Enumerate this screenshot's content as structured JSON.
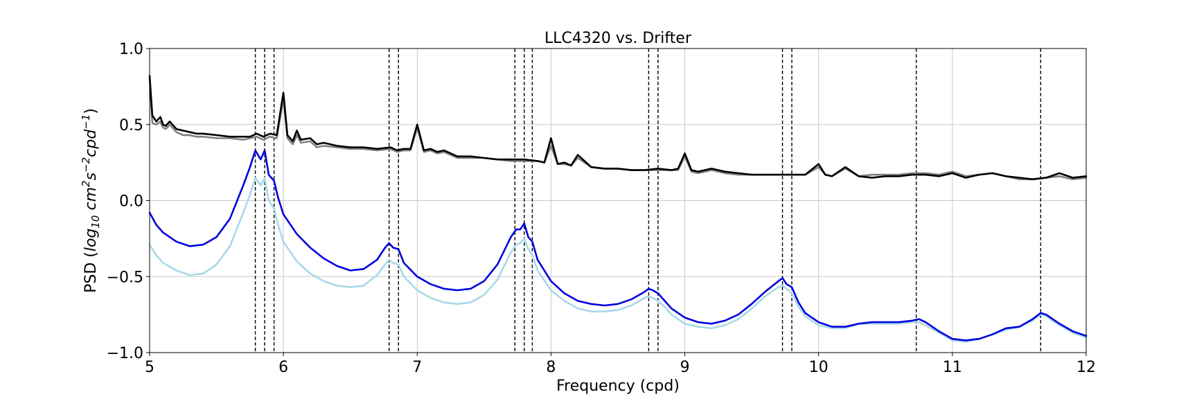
{
  "chart_data": {
    "type": "line",
    "title": "LLC4320 vs. Drifter",
    "xlabel": "Frequency (cpd)",
    "ylabel_parts": {
      "prefix": "PSD (",
      "log": "log",
      "log_sub": "10",
      "cm": " cm",
      "cm_sup": "2",
      "s": "s",
      "s_sup": "−2",
      "cpd": "cpd",
      "cpd_sup": "−1",
      "suffix": ")"
    },
    "xlim": [
      5,
      12
    ],
    "ylim": [
      -1.0,
      1.0
    ],
    "xticks": [
      5,
      6,
      7,
      8,
      9,
      10,
      11,
      12
    ],
    "xtick_labels": [
      "5",
      "6",
      "7",
      "8",
      "9",
      "10",
      "11",
      "12"
    ],
    "yticks": [
      1.0,
      0.5,
      0.0,
      -0.5,
      -1.0
    ],
    "ytick_labels": [
      "1.0",
      "0.5",
      "0.0",
      "−0.5",
      "−1.0"
    ],
    "grid": true,
    "legend": "none",
    "vlines": [
      5.79,
      5.86,
      5.93,
      6.79,
      6.86,
      7.73,
      7.8,
      7.86,
      8.73,
      8.8,
      9.73,
      9.8,
      10.73,
      11.66
    ],
    "vline_style": "dashed",
    "colors": {
      "black": "#000000",
      "gray": "#808080",
      "blue": "#0000e0",
      "lightblue": "#a8d8e8",
      "grid": "#c8c8c8"
    },
    "series": [
      {
        "color": "#000000",
        "x": [
          5.0,
          5.02,
          5.05,
          5.08,
          5.1,
          5.12,
          5.15,
          5.2,
          5.25,
          5.3,
          5.35,
          5.4,
          5.5,
          5.6,
          5.7,
          5.75,
          5.8,
          5.85,
          5.9,
          5.95,
          6.0,
          6.03,
          6.07,
          6.1,
          6.13,
          6.2,
          6.25,
          6.3,
          6.4,
          6.5,
          6.6,
          6.7,
          6.8,
          6.85,
          6.9,
          6.95,
          7.0,
          7.05,
          7.1,
          7.15,
          7.2,
          7.3,
          7.4,
          7.5,
          7.6,
          7.7,
          7.8,
          7.9,
          7.95,
          8.0,
          8.05,
          8.1,
          8.15,
          8.2,
          8.3,
          8.4,
          8.5,
          8.6,
          8.7,
          8.8,
          8.9,
          8.95,
          9.0,
          9.05,
          9.1,
          9.2,
          9.3,
          9.4,
          9.5,
          9.6,
          9.7,
          9.8,
          9.9,
          10.0,
          10.05,
          10.1,
          10.2,
          10.3,
          10.4,
          10.5,
          10.6,
          10.7,
          10.8,
          10.9,
          11.0,
          11.1,
          11.2,
          11.3,
          11.4,
          11.5,
          11.6,
          11.7,
          11.8,
          11.9,
          12.0
        ],
        "values": [
          0.82,
          0.56,
          0.52,
          0.55,
          0.5,
          0.49,
          0.52,
          0.47,
          0.46,
          0.45,
          0.44,
          0.44,
          0.43,
          0.42,
          0.42,
          0.42,
          0.44,
          0.42,
          0.44,
          0.43,
          0.71,
          0.43,
          0.39,
          0.46,
          0.4,
          0.41,
          0.37,
          0.38,
          0.36,
          0.35,
          0.35,
          0.34,
          0.35,
          0.33,
          0.34,
          0.34,
          0.5,
          0.33,
          0.34,
          0.32,
          0.33,
          0.29,
          0.29,
          0.28,
          0.27,
          0.27,
          0.27,
          0.26,
          0.25,
          0.41,
          0.24,
          0.25,
          0.23,
          0.3,
          0.22,
          0.21,
          0.21,
          0.2,
          0.2,
          0.21,
          0.2,
          0.21,
          0.31,
          0.2,
          0.19,
          0.21,
          0.19,
          0.18,
          0.17,
          0.17,
          0.17,
          0.17,
          0.17,
          0.24,
          0.17,
          0.16,
          0.22,
          0.16,
          0.15,
          0.16,
          0.16,
          0.17,
          0.17,
          0.16,
          0.18,
          0.15,
          0.17,
          0.18,
          0.16,
          0.15,
          0.14,
          0.15,
          0.18,
          0.15,
          0.16
        ]
      },
      {
        "color": "#808080",
        "x": [
          5.0,
          5.02,
          5.05,
          5.08,
          5.1,
          5.12,
          5.15,
          5.2,
          5.25,
          5.3,
          5.35,
          5.4,
          5.5,
          5.6,
          5.7,
          5.75,
          5.8,
          5.85,
          5.9,
          5.95,
          6.0,
          6.03,
          6.07,
          6.1,
          6.13,
          6.2,
          6.25,
          6.3,
          6.4,
          6.5,
          6.6,
          6.7,
          6.8,
          6.85,
          6.9,
          6.95,
          7.0,
          7.05,
          7.1,
          7.15,
          7.2,
          7.3,
          7.4,
          7.5,
          7.6,
          7.7,
          7.8,
          7.9,
          7.95,
          8.0,
          8.05,
          8.1,
          8.15,
          8.2,
          8.3,
          8.4,
          8.5,
          8.6,
          8.7,
          8.8,
          8.9,
          8.95,
          9.0,
          9.05,
          9.1,
          9.2,
          9.3,
          9.4,
          9.5,
          9.6,
          9.7,
          9.8,
          9.9,
          10.0,
          10.05,
          10.1,
          10.2,
          10.3,
          10.4,
          10.5,
          10.6,
          10.7,
          10.8,
          10.9,
          11.0,
          11.1,
          11.2,
          11.3,
          11.4,
          11.5,
          11.6,
          11.7,
          11.8,
          11.9,
          12.0
        ],
        "values": [
          0.8,
          0.51,
          0.5,
          0.52,
          0.48,
          0.47,
          0.5,
          0.45,
          0.43,
          0.43,
          0.42,
          0.42,
          0.41,
          0.41,
          0.4,
          0.41,
          0.42,
          0.4,
          0.42,
          0.41,
          0.67,
          0.41,
          0.37,
          0.43,
          0.38,
          0.39,
          0.35,
          0.36,
          0.35,
          0.34,
          0.34,
          0.33,
          0.34,
          0.32,
          0.33,
          0.33,
          0.48,
          0.32,
          0.33,
          0.31,
          0.32,
          0.28,
          0.28,
          0.28,
          0.27,
          0.26,
          0.26,
          0.26,
          0.25,
          0.36,
          0.24,
          0.24,
          0.23,
          0.28,
          0.22,
          0.21,
          0.21,
          0.2,
          0.2,
          0.2,
          0.2,
          0.2,
          0.29,
          0.19,
          0.18,
          0.2,
          0.18,
          0.17,
          0.17,
          0.17,
          0.17,
          0.17,
          0.17,
          0.22,
          0.17,
          0.16,
          0.21,
          0.16,
          0.17,
          0.17,
          0.17,
          0.18,
          0.18,
          0.17,
          0.19,
          0.16,
          0.17,
          0.18,
          0.16,
          0.14,
          0.14,
          0.15,
          0.16,
          0.14,
          0.15
        ]
      },
      {
        "color": "#0000e0",
        "x": [
          5.0,
          5.05,
          5.1,
          5.2,
          5.3,
          5.4,
          5.5,
          5.6,
          5.7,
          5.75,
          5.79,
          5.83,
          5.86,
          5.89,
          5.93,
          5.96,
          6.0,
          6.1,
          6.2,
          6.3,
          6.4,
          6.5,
          6.6,
          6.7,
          6.76,
          6.79,
          6.82,
          6.86,
          6.9,
          7.0,
          7.1,
          7.2,
          7.3,
          7.4,
          7.5,
          7.6,
          7.7,
          7.74,
          7.77,
          7.8,
          7.83,
          7.86,
          7.9,
          8.0,
          8.1,
          8.2,
          8.3,
          8.4,
          8.5,
          8.6,
          8.7,
          8.73,
          8.76,
          8.8,
          8.85,
          8.9,
          9.0,
          9.1,
          9.2,
          9.3,
          9.4,
          9.5,
          9.6,
          9.7,
          9.73,
          9.76,
          9.8,
          9.85,
          9.9,
          10.0,
          10.1,
          10.2,
          10.3,
          10.4,
          10.5,
          10.6,
          10.7,
          10.75,
          10.8,
          10.9,
          11.0,
          11.1,
          11.2,
          11.3,
          11.4,
          11.5,
          11.6,
          11.66,
          11.7,
          11.8,
          11.9,
          12.0
        ],
        "values": [
          -0.08,
          -0.16,
          -0.21,
          -0.27,
          -0.3,
          -0.29,
          -0.24,
          -0.12,
          0.1,
          0.22,
          0.33,
          0.27,
          0.33,
          0.17,
          0.13,
          0.02,
          -0.09,
          -0.22,
          -0.31,
          -0.38,
          -0.43,
          -0.46,
          -0.45,
          -0.39,
          -0.31,
          -0.28,
          -0.31,
          -0.32,
          -0.41,
          -0.5,
          -0.55,
          -0.58,
          -0.59,
          -0.58,
          -0.53,
          -0.42,
          -0.24,
          -0.19,
          -0.19,
          -0.15,
          -0.24,
          -0.27,
          -0.39,
          -0.53,
          -0.61,
          -0.66,
          -0.68,
          -0.69,
          -0.68,
          -0.65,
          -0.6,
          -0.58,
          -0.59,
          -0.61,
          -0.66,
          -0.71,
          -0.77,
          -0.8,
          -0.81,
          -0.79,
          -0.75,
          -0.68,
          -0.6,
          -0.53,
          -0.51,
          -0.55,
          -0.57,
          -0.67,
          -0.74,
          -0.8,
          -0.83,
          -0.83,
          -0.81,
          -0.8,
          -0.8,
          -0.8,
          -0.79,
          -0.78,
          -0.8,
          -0.86,
          -0.91,
          -0.92,
          -0.91,
          -0.88,
          -0.84,
          -0.83,
          -0.78,
          -0.74,
          -0.75,
          -0.81,
          -0.86,
          -0.89
        ]
      },
      {
        "color": "#a8d8e8",
        "x": [
          5.0,
          5.05,
          5.1,
          5.2,
          5.3,
          5.4,
          5.5,
          5.6,
          5.7,
          5.75,
          5.79,
          5.83,
          5.86,
          5.89,
          5.93,
          5.96,
          6.0,
          6.1,
          6.2,
          6.3,
          6.4,
          6.5,
          6.6,
          6.7,
          6.76,
          6.79,
          6.82,
          6.86,
          6.9,
          7.0,
          7.1,
          7.2,
          7.3,
          7.4,
          7.5,
          7.6,
          7.7,
          7.74,
          7.77,
          7.8,
          7.83,
          7.86,
          7.9,
          8.0,
          8.1,
          8.2,
          8.3,
          8.4,
          8.5,
          8.6,
          8.7,
          8.73,
          8.76,
          8.8,
          8.85,
          8.9,
          9.0,
          9.1,
          9.2,
          9.3,
          9.4,
          9.5,
          9.6,
          9.7,
          9.73,
          9.76,
          9.8,
          9.85,
          9.9,
          10.0,
          10.1,
          10.2,
          10.3,
          10.4,
          10.5,
          10.6,
          10.7,
          10.75,
          10.8,
          10.9,
          11.0,
          11.1,
          11.2,
          11.3,
          11.4,
          11.5,
          11.6,
          11.66,
          11.7,
          11.8,
          11.9,
          12.0
        ],
        "values": [
          -0.29,
          -0.36,
          -0.41,
          -0.46,
          -0.49,
          -0.48,
          -0.42,
          -0.3,
          -0.08,
          0.04,
          0.15,
          0.1,
          0.15,
          0.0,
          -0.05,
          -0.16,
          -0.27,
          -0.4,
          -0.48,
          -0.53,
          -0.56,
          -0.57,
          -0.56,
          -0.49,
          -0.42,
          -0.39,
          -0.41,
          -0.42,
          -0.5,
          -0.59,
          -0.64,
          -0.67,
          -0.68,
          -0.67,
          -0.62,
          -0.52,
          -0.34,
          -0.29,
          -0.28,
          -0.25,
          -0.32,
          -0.36,
          -0.46,
          -0.59,
          -0.66,
          -0.71,
          -0.73,
          -0.73,
          -0.72,
          -0.69,
          -0.64,
          -0.63,
          -0.64,
          -0.66,
          -0.7,
          -0.75,
          -0.81,
          -0.83,
          -0.84,
          -0.82,
          -0.78,
          -0.71,
          -0.63,
          -0.57,
          -0.56,
          -0.58,
          -0.61,
          -0.7,
          -0.76,
          -0.82,
          -0.84,
          -0.84,
          -0.81,
          -0.81,
          -0.81,
          -0.81,
          -0.8,
          -0.8,
          -0.82,
          -0.87,
          -0.92,
          -0.93,
          -0.91,
          -0.88,
          -0.85,
          -0.83,
          -0.79,
          -0.75,
          -0.76,
          -0.82,
          -0.87,
          -0.9
        ]
      }
    ]
  }
}
